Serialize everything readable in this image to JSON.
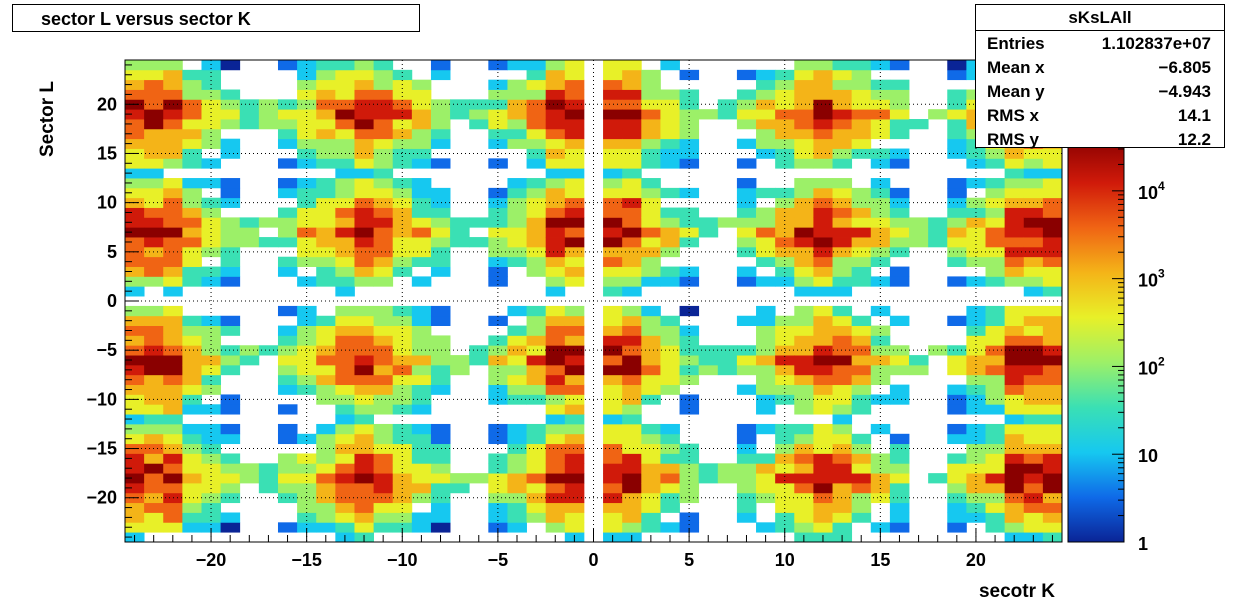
{
  "chart_data": {
    "type": "heatmap",
    "title": "sector L versus sector K",
    "xlabel": "secotr K",
    "ylabel": "Sector L",
    "xlim": [
      -24.5,
      24.5
    ],
    "ylim": [
      -24.5,
      24.5
    ],
    "x_ticks": [
      -20,
      -15,
      -10,
      -5,
      0,
      5,
      10,
      15,
      20
    ],
    "y_ticks": [
      -20,
      -15,
      -10,
      -5,
      0,
      5,
      10,
      15,
      20
    ],
    "x_tick_labels": [
      "−20",
      "−15",
      "−10",
      "−5",
      "0",
      "5",
      "10",
      "15",
      "20"
    ],
    "y_tick_labels": [
      "−20",
      "−15",
      "−10",
      "−5",
      "0",
      "5",
      "10",
      "15",
      "20"
    ],
    "grid": true,
    "z_scale": "log",
    "z_range": [
      1,
      40000
    ],
    "colorbar_ticks": [
      1,
      10,
      100,
      1000,
      10000
    ],
    "colorbar_labels": [
      {
        "base": "1",
        "exp": ""
      },
      {
        "base": "10",
        "exp": ""
      },
      {
        "base": "10",
        "exp": "2"
      },
      {
        "base": "10",
        "exp": "3"
      },
      {
        "base": "10",
        "exp": "4"
      }
    ],
    "colormap": [
      "#0a2496",
      "#0f6ae8",
      "#16c8f0",
      "#3ae0b4",
      "#9cf068",
      "#e8f028",
      "#f4b418",
      "#f06414",
      "#d01a0a",
      "#8a0000"
    ],
    "hotspot_x": [
      -23,
      -12,
      -1,
      1,
      12,
      23
    ],
    "hotspot_y": [
      -18,
      -6,
      7,
      19
    ],
    "stats": {
      "name": "sKsLAll",
      "rows": [
        {
          "label": "Entries",
          "value": "1.102837e+07"
        },
        {
          "label": "Mean x",
          "value": "−6.805"
        },
        {
          "label": "Mean y",
          "value": "−4.943"
        },
        {
          "label": "RMS x",
          "value": "14.1"
        },
        {
          "label": "RMS y",
          "value": "12.2"
        }
      ]
    }
  }
}
